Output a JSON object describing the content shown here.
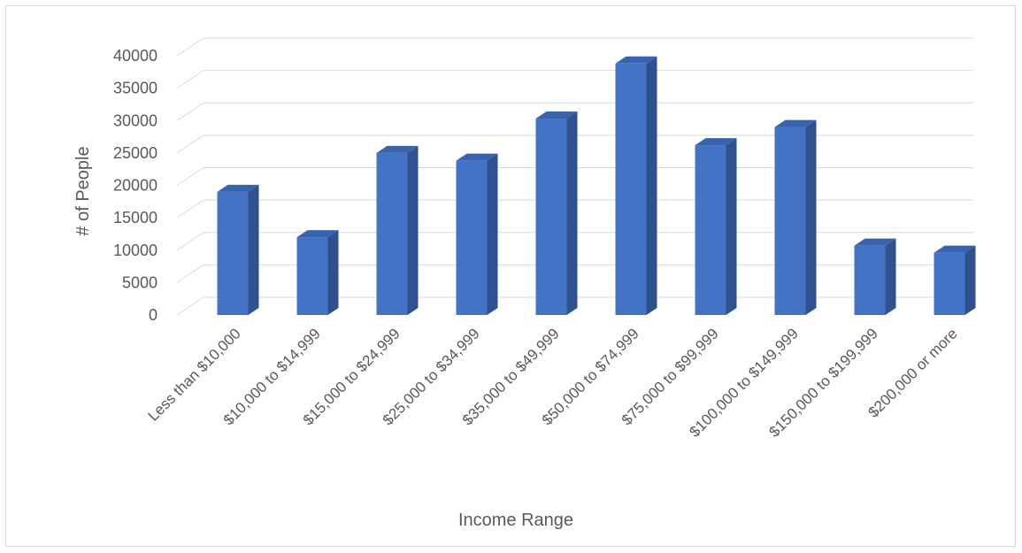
{
  "chart_data": {
    "type": "bar",
    "style": "3d-column",
    "title": "",
    "xlabel": "Income Range",
    "ylabel": "# of People",
    "ylim": [
      0,
      40000
    ],
    "yticks": [
      0,
      5000,
      10000,
      15000,
      20000,
      25000,
      30000,
      35000,
      40000
    ],
    "grid": true,
    "legend": "none",
    "categories": [
      "Less than $10,000",
      "$10,000 to $14,999",
      "$15,000 to $24,999",
      "$25,000 to $34,999",
      "$35,000 to $49,999",
      "$50,000 to $74,999",
      "$75,000 to $99,999",
      "$100,000 to $149,999",
      "$150,000 to $199,999",
      "$200,000 or more"
    ],
    "values": [
      19000,
      12000,
      25000,
      23800,
      30300,
      38800,
      26200,
      29000,
      10700,
      9600
    ],
    "colors": {
      "bar_front": "#4472c4",
      "bar_side": "#2f528f",
      "bar_top": "#3a63ad",
      "gridline": "#d9d9d9",
      "text": "#595959"
    }
  }
}
